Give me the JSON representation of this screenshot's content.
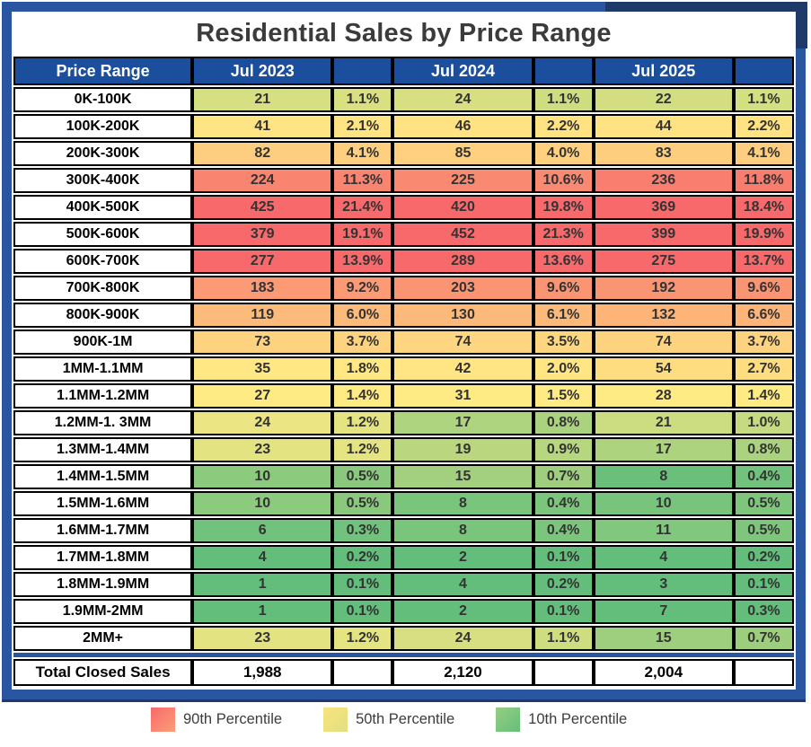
{
  "title": "Residential Sales by Price Range",
  "columns": [
    "Price Range",
    "Jul 2023",
    "",
    "Jul 2024",
    "",
    "Jul 2025",
    ""
  ],
  "total_row": {
    "label": "Total Closed Sales",
    "values": [
      "1,988",
      "2,120",
      "2,004"
    ]
  },
  "legend": [
    {
      "label": "90th Percentile",
      "color_from": "#F8696B",
      "color_to": "#FB9E77"
    },
    {
      "label": "50th Percentile",
      "color_from": "#F9E47D",
      "color_to": "#E2DF82"
    },
    {
      "label": "10th Percentile",
      "color_from": "#97CE82",
      "color_to": "#63BE7B"
    }
  ],
  "colors": {
    "frame_blue": "#2A55A0",
    "frame_dark_navy": "#1F3A68",
    "header_bg": "#1B4F9E",
    "header_text": "#FFFFFF",
    "cell_border": "#000000",
    "title_text": "#3B3B3B",
    "scale_min_green": "#63BE7B",
    "scale_mid_yellow": "#FFEB84",
    "scale_max_red": "#F8696B"
  },
  "chart_data": {
    "type": "heatmap",
    "title": "Residential Sales by Price Range",
    "categories": [
      "0K-100K",
      "100K-200K",
      "200K-300K",
      "300K-400K",
      "400K-500K",
      "500K-600K",
      "600K-700K",
      "700K-800K",
      "800K-900K",
      "900K-1M",
      "1MM-1.1MM",
      "1.1MM-1.2MM",
      "1.2MM-1. 3MM",
      "1.3MM-1.4MM",
      "1.4MM-1.5MM",
      "1.5MM-1.6MM",
      "1.6MM-1.7MM",
      "1.7MM-1.8MM",
      "1.8MM-1.9MM",
      "1.9MM-2MM",
      "2MM+"
    ],
    "series": [
      {
        "name": "Jul 2023",
        "counts": [
          21,
          41,
          82,
          224,
          425,
          379,
          277,
          183,
          119,
          73,
          35,
          27,
          24,
          23,
          10,
          10,
          6,
          4,
          1,
          1,
          23
        ],
        "pct_of_total": [
          1.1,
          2.1,
          4.1,
          11.3,
          21.4,
          19.1,
          13.9,
          9.2,
          6.0,
          3.7,
          1.8,
          1.4,
          1.2,
          1.2,
          0.5,
          0.5,
          0.3,
          0.2,
          0.1,
          0.1,
          1.2
        ],
        "total_closed_sales": 1988
      },
      {
        "name": "Jul 2024",
        "counts": [
          24,
          46,
          85,
          225,
          420,
          452,
          289,
          203,
          130,
          74,
          42,
          31,
          17,
          19,
          15,
          8,
          8,
          2,
          4,
          2,
          24
        ],
        "pct_of_total": [
          1.1,
          2.2,
          4.0,
          10.6,
          19.8,
          21.3,
          13.6,
          9.6,
          6.1,
          3.5,
          2.0,
          1.5,
          0.8,
          0.9,
          0.7,
          0.4,
          0.4,
          0.1,
          0.2,
          0.1,
          1.1
        ],
        "total_closed_sales": 2120
      },
      {
        "name": "Jul 2025",
        "counts": [
          22,
          44,
          83,
          236,
          369,
          399,
          275,
          192,
          132,
          74,
          54,
          28,
          21,
          17,
          8,
          10,
          11,
          4,
          3,
          7,
          15
        ],
        "pct_of_total": [
          1.1,
          2.2,
          4.1,
          11.8,
          18.4,
          19.9,
          13.7,
          9.6,
          6.6,
          3.7,
          2.7,
          1.4,
          1.0,
          0.8,
          0.4,
          0.5,
          0.5,
          0.2,
          0.1,
          0.3,
          0.7
        ],
        "total_closed_sales": 2004
      }
    ],
    "color_scale": {
      "min_color": "#63BE7B",
      "mid_color": "#FFEB84",
      "max_color": "#F8696B",
      "anchors": [
        "10th percentile",
        "50th percentile",
        "90th percentile"
      ],
      "scope": "per column"
    },
    "legend_entries": [
      "90th Percentile",
      "50th Percentile",
      "10th Percentile"
    ],
    "grid": true,
    "legend_position": "bottom"
  }
}
